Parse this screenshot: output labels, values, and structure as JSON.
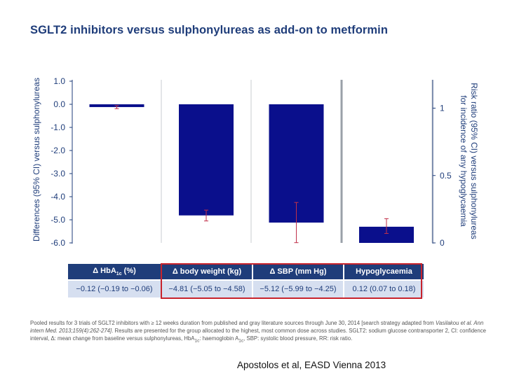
{
  "chart_data": {
    "type": "bar",
    "title": "SGLT2 inhibitors versus sulphonylureas as add-on to metformin",
    "categories": [
      "Δ HbA1c (%)",
      "Δ body weight (kg)",
      "Δ SBP (mm Hg)",
      "Hypoglycaemia"
    ],
    "values": [
      -0.12,
      -4.81,
      -5.12,
      0.12
    ],
    "ci_low": [
      -0.19,
      -5.05,
      -5.99,
      0.07
    ],
    "ci_high": [
      -0.06,
      -4.58,
      -4.25,
      0.18
    ],
    "axis": [
      "left",
      "left",
      "left",
      "right"
    ],
    "ylabel": "Differences (95% CI) versus sulphonylureas",
    "ylim": [
      -6.0,
      1.0
    ],
    "yticks": [
      "1.0",
      "0.0",
      "-1.0",
      "-2.0",
      "-3.0",
      "-4.0",
      "-5.0",
      "-6.0"
    ],
    "y2label_line1": "Risk ratio (95% CI) versus sulphonylureas",
    "y2label_line2": "for incidence of any hypoglycaemia",
    "y2lim": [
      0,
      1.2
    ],
    "y2ticks": [
      "1",
      "0.5",
      "0"
    ],
    "bar_color": "#0a0f8c",
    "error_color": "#c0304a"
  },
  "table": {
    "headers": [
      {
        "main": "Δ HbA",
        "sub": "1c",
        "rest": " (%)"
      },
      {
        "main": "Δ body weight (kg)",
        "sub": "",
        "rest": ""
      },
      {
        "main": "Δ SBP (mm Hg)",
        "sub": "",
        "rest": ""
      },
      {
        "main": "Hypoglycaemia",
        "sub": "",
        "rest": ""
      }
    ],
    "values": [
      "−0.12 (−0.19 to −0.06)",
      "−4.81 (−5.05 to −4.58)",
      "−5.12 (−5.99 to −4.25)",
      "0.12 (0.07 to 0.18)"
    ]
  },
  "footnote": {
    "part1": "Pooled results for 3 trials of SGLT2 inhibitors with ≥ 12 weeks duration from published and gray literature sources through June 30, 2014 [search strategy adapted from ",
    "italic": "Vasilakou et al. Ann intern Med. 2013;159(4):262-274]",
    "part2": ". Results are presented for the group allocated to the highest, most common dose across studies. SGLT2: sodium glucose contransporter 2, CI: confidence interval, Δ: mean change from baseline versus sulphonylureas, HbA",
    "sub1": "1c",
    "part3": ": haemoglobin A",
    "sub2": "1c",
    "part4": ", SBP: systolic blood pressure, RR: risk ratio."
  },
  "citation": "Apostolos et al, EASD Vienna 2013"
}
